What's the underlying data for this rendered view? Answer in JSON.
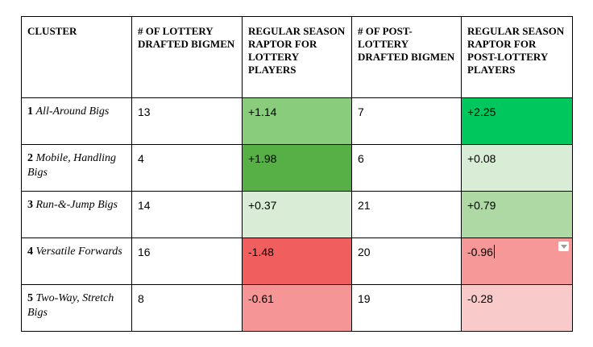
{
  "headers": [
    "CLUSTER",
    "# OF LOTTERY DRAFTED BIGMEN",
    "REGULAR SEASON RAPTOR FOR LOTTERY PLAYERS",
    "# OF POST-LOTTERY DRAFTED BIGMEN",
    "REGULAR SEASON RAPTOR FOR POST-LOTTERY PLAYERS"
  ],
  "rows": [
    {
      "num": "1",
      "name": "All-Around Bigs",
      "lottery_count": "13",
      "lottery_raptor": "+1.14",
      "lottery_color": "#88cc7c",
      "post_count": "7",
      "post_raptor": "+2.25",
      "post_color": "#00c65e"
    },
    {
      "num": "2",
      "name": "Mobile, Handling Bigs",
      "lottery_count": "4",
      "lottery_raptor": "+1.98",
      "lottery_color": "#56b046",
      "post_count": "6",
      "post_raptor": "+0.08",
      "post_color": "#d9ecd5"
    },
    {
      "num": "3",
      "name": "Run-&-Jump Bigs",
      "lottery_count": "14",
      "lottery_raptor": "+0.37",
      "lottery_color": "#d9ecd5",
      "post_count": "21",
      "post_raptor": "+0.79",
      "post_color": "#aed9a4"
    },
    {
      "num": "4",
      "name": "Versatile Forwards",
      "lottery_count": "16",
      "lottery_raptor": "-1.48",
      "lottery_color": "#f05e5e",
      "post_count": "20",
      "post_raptor": "-0.96",
      "post_color": "#f69898"
    },
    {
      "num": "5",
      "name": "Two-Way, Stretch Bigs",
      "lottery_count": "8",
      "lottery_raptor": "-0.61",
      "lottery_color": "#f59595",
      "post_count": "19",
      "post_raptor": "-0.28",
      "post_color": "#f9caca"
    }
  ]
}
